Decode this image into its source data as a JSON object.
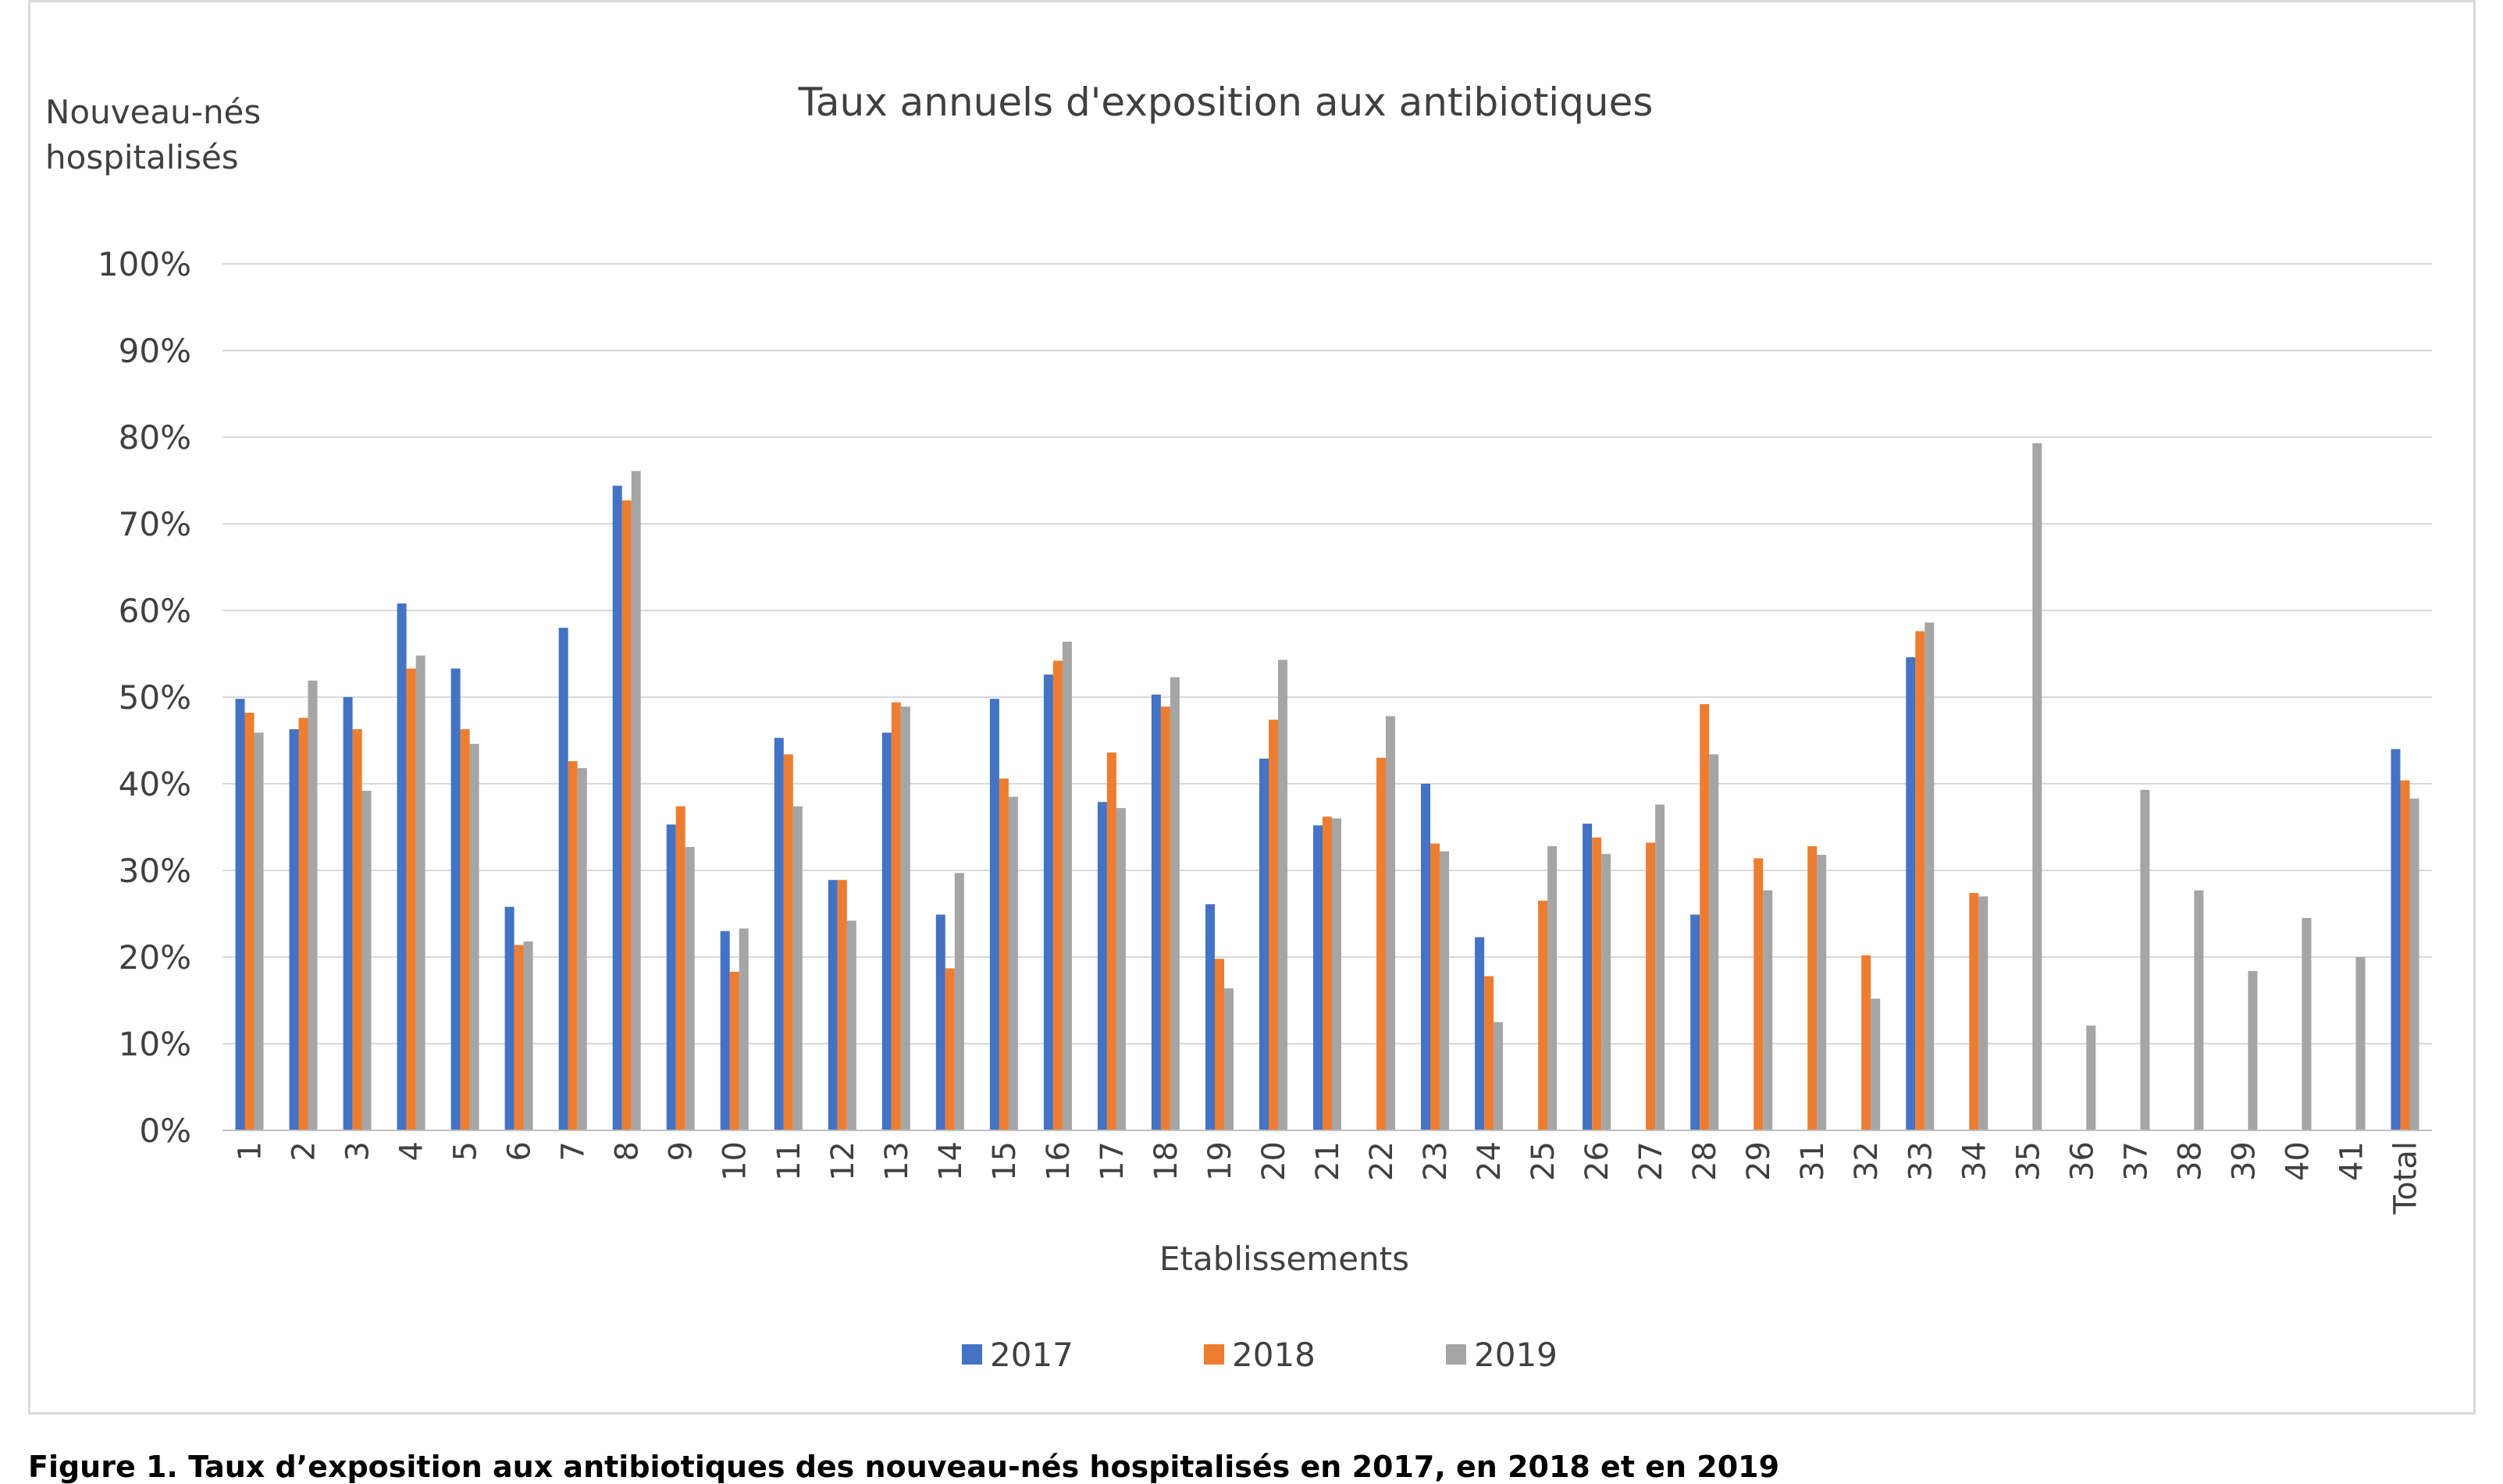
{
  "figure_caption": "Figure 1. Taux d’exposition aux antibiotiques des nouveau-nés hospitalisés en 2017, en 2018 et en 2019",
  "colors": {
    "2017": "#4472c4",
    "2018": "#ed7d31",
    "2019": "#a5a5a5",
    "gridline": "#d9d9d9",
    "axis": "#bfbfbf"
  },
  "chart_data": {
    "type": "bar",
    "title": "Taux annuels d'exposition aux antibiotiques",
    "ylabel_lines": [
      "Nouveau-nés",
      "hospitalisés"
    ],
    "xlabel": "Etablissements",
    "ylim": [
      0,
      100
    ],
    "y_ticks": [
      0,
      10,
      20,
      30,
      40,
      50,
      60,
      70,
      80,
      90,
      100
    ],
    "y_tick_labels": [
      "0%",
      "10%",
      "20%",
      "30%",
      "40%",
      "50%",
      "60%",
      "70%",
      "80%",
      "90%",
      "100%"
    ],
    "grid": true,
    "legend_position": "bottom",
    "categories": [
      "1",
      "2",
      "3",
      "4",
      "5",
      "6",
      "7",
      "8",
      "9",
      "10",
      "11",
      "12",
      "13",
      "14",
      "15",
      "16",
      "17",
      "18",
      "19",
      "20",
      "21",
      "22",
      "23",
      "24",
      "25",
      "26",
      "27",
      "28",
      "29",
      "31",
      "32",
      "33",
      "34",
      "35",
      "36",
      "37",
      "38",
      "39",
      "40",
      "41",
      "Total"
    ],
    "series": [
      {
        "name": "2017",
        "color": "#4472c4",
        "values": [
          49.8,
          46.3,
          50.0,
          60.8,
          53.3,
          25.8,
          58.0,
          74.4,
          35.3,
          23.0,
          45.3,
          28.9,
          45.9,
          24.9,
          49.8,
          52.6,
          37.9,
          50.3,
          26.1,
          42.9,
          35.2,
          null,
          40.0,
          22.3,
          null,
          35.4,
          null,
          24.9,
          null,
          null,
          null,
          54.6,
          null,
          null,
          null,
          null,
          null,
          null,
          null,
          null,
          44.0
        ]
      },
      {
        "name": "2018",
        "color": "#ed7d31",
        "values": [
          48.2,
          47.6,
          46.3,
          53.3,
          46.3,
          21.4,
          42.6,
          72.7,
          37.4,
          18.3,
          43.4,
          28.9,
          49.4,
          18.7,
          40.6,
          54.2,
          43.6,
          48.9,
          19.8,
          47.4,
          36.2,
          43.0,
          33.1,
          17.8,
          26.5,
          33.8,
          33.2,
          49.2,
          31.4,
          32.8,
          20.2,
          57.6,
          27.4,
          null,
          null,
          null,
          null,
          null,
          null,
          null,
          40.4
        ]
      },
      {
        "name": "2019",
        "color": "#a5a5a5",
        "values": [
          45.9,
          51.9,
          39.2,
          54.8,
          44.6,
          21.8,
          41.8,
          76.1,
          32.7,
          23.3,
          37.4,
          24.2,
          48.9,
          29.7,
          38.5,
          56.4,
          37.2,
          52.3,
          16.4,
          54.3,
          36.0,
          47.8,
          32.2,
          12.5,
          32.8,
          31.9,
          37.6,
          43.4,
          27.7,
          31.8,
          15.2,
          58.6,
          27.0,
          79.3,
          12.1,
          39.3,
          27.7,
          18.4,
          24.5,
          20.0,
          38.3
        ]
      }
    ]
  }
}
